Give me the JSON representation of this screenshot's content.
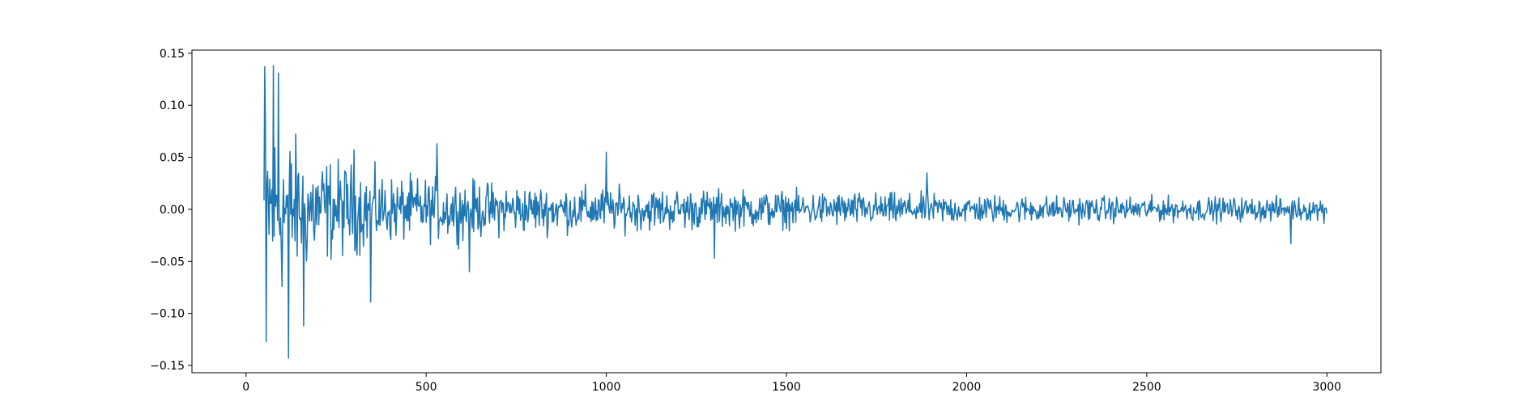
{
  "chart_data": {
    "type": "line",
    "title": "",
    "xlabel": "",
    "ylabel": "",
    "xlim": [
      -150,
      3150
    ],
    "ylim": [
      -0.157,
      0.153
    ],
    "grid": false,
    "legend": "none",
    "xticks": [
      0,
      500,
      1000,
      1500,
      2000,
      2500,
      3000
    ],
    "xtick_labels": [
      "0",
      "500",
      "1000",
      "1500",
      "2000",
      "2500",
      "3000"
    ],
    "yticks": [
      -0.15,
      -0.1,
      -0.05,
      0.0,
      0.05,
      0.1,
      0.15
    ],
    "ytick_labels": [
      "−0.15",
      "−0.10",
      "−0.05",
      "0.00",
      "0.05",
      "0.10",
      "0.15"
    ],
    "series": [
      {
        "color": "#1f77b4",
        "x_start": 50,
        "x_end": 3000,
        "x_step": 2,
        "envelope": [
          [
            50,
            0.14
          ],
          [
            100,
            0.12
          ],
          [
            150,
            0.09
          ],
          [
            200,
            0.075
          ],
          [
            300,
            0.06
          ],
          [
            400,
            0.045
          ],
          [
            600,
            0.04
          ],
          [
            800,
            0.032
          ],
          [
            1000,
            0.03
          ],
          [
            1500,
            0.025
          ],
          [
            2000,
            0.02
          ],
          [
            2500,
            0.017
          ],
          [
            3000,
            0.016
          ]
        ],
        "peaks": [
          [
            52,
            0.137
          ],
          [
            55,
            -0.127
          ],
          [
            75,
            0.138
          ],
          [
            90,
            0.131
          ],
          [
            118,
            -0.143
          ],
          [
            160,
            -0.112
          ],
          [
            300,
            0.057
          ],
          [
            345,
            -0.089
          ],
          [
            530,
            0.063
          ],
          [
            620,
            -0.06
          ],
          [
            1000,
            0.055
          ],
          [
            1300,
            -0.047
          ],
          [
            1890,
            0.035
          ],
          [
            2900,
            -0.033
          ]
        ]
      }
    ]
  }
}
